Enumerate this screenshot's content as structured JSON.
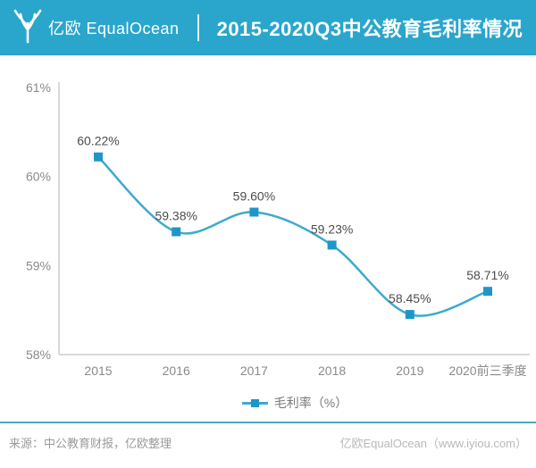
{
  "header": {
    "logo_text": "亿欧 EqualOcean",
    "title": "2015-2020Q3中公教育毛利率情况",
    "background_color": "#2aa6cc"
  },
  "chart_data": {
    "type": "line",
    "title": "2015-2020Q3中公教育毛利率情况",
    "categories": [
      "2015",
      "2016",
      "2017",
      "2018",
      "2019",
      "2020前三季度"
    ],
    "series": [
      {
        "name": "毛利率（%）",
        "values": [
          60.22,
          59.38,
          59.6,
          59.23,
          58.45,
          58.71
        ]
      }
    ],
    "point_labels": [
      "60.22%",
      "59.38%",
      "59.60%",
      "59.23%",
      "58.45%",
      "58.71%"
    ],
    "ylim": [
      58,
      61
    ],
    "yticks": [
      58,
      59,
      60,
      61
    ],
    "ytick_labels": [
      "58%",
      "59%",
      "60%",
      "61%"
    ],
    "grid": false,
    "smooth": true,
    "legend_position": "bottom",
    "line_color": "#3fa9ce",
    "marker_color": "#1e96c8",
    "axis_color": "#d9d9d9",
    "tick_label_color": "#8a8a8a",
    "data_label_color": "#4d4d4d"
  },
  "legend": {
    "label": "毛利率（%）"
  },
  "footer": {
    "source": "来源：中公教育财报，亿欧整理",
    "brand": "亿欧EqualOcean（www.iyiou.com）"
  }
}
